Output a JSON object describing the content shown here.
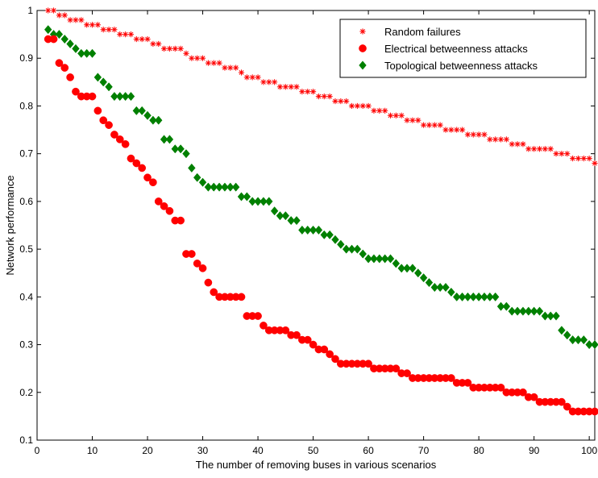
{
  "chart_data": {
    "type": "scatter",
    "title": "",
    "xlabel": "The number of removing buses in various scenarios",
    "ylabel": "Network performance",
    "xlim": [
      0,
      101
    ],
    "ylim": [
      0.1,
      1
    ],
    "xticks": [
      0,
      10,
      20,
      30,
      40,
      50,
      60,
      70,
      80,
      90,
      100
    ],
    "yticks": [
      0.1,
      0.2,
      0.3,
      0.4,
      0.5,
      0.6,
      0.7,
      0.8,
      0.9,
      1
    ],
    "xtick_labels": [
      "0",
      "10",
      "20",
      "30",
      "40",
      "50",
      "60",
      "70",
      "80",
      "90",
      "100"
    ],
    "ytick_labels": [
      "0.1",
      "0.2",
      "0.3",
      "0.4",
      "0.5",
      "0.6",
      "0.7",
      "0.8",
      "0.9",
      "1"
    ],
    "grid": false,
    "legend_position": "top-right",
    "x": [
      2,
      3,
      4,
      5,
      6,
      7,
      8,
      9,
      10,
      11,
      12,
      13,
      14,
      15,
      16,
      17,
      18,
      19,
      20,
      21,
      22,
      23,
      24,
      25,
      26,
      27,
      28,
      29,
      30,
      31,
      32,
      33,
      34,
      35,
      36,
      37,
      38,
      39,
      40,
      41,
      42,
      43,
      44,
      45,
      46,
      47,
      48,
      49,
      50,
      51,
      52,
      53,
      54,
      55,
      56,
      57,
      58,
      59,
      60,
      61,
      62,
      63,
      64,
      65,
      66,
      67,
      68,
      69,
      70,
      71,
      72,
      73,
      74,
      75,
      76,
      77,
      78,
      79,
      80,
      81,
      82,
      83,
      84,
      85,
      86,
      87,
      88,
      89,
      90,
      91,
      92,
      93,
      94,
      95,
      96,
      97,
      98,
      99,
      100,
      101
    ],
    "series": [
      {
        "name": "Random failures",
        "marker": "star",
        "color": "#ff0000",
        "values": [
          1.0,
          1.0,
          0.99,
          0.99,
          0.98,
          0.98,
          0.98,
          0.97,
          0.97,
          0.97,
          0.96,
          0.96,
          0.96,
          0.95,
          0.95,
          0.95,
          0.94,
          0.94,
          0.94,
          0.93,
          0.93,
          0.92,
          0.92,
          0.92,
          0.92,
          0.91,
          0.9,
          0.9,
          0.9,
          0.89,
          0.89,
          0.89,
          0.88,
          0.88,
          0.88,
          0.87,
          0.86,
          0.86,
          0.86,
          0.85,
          0.85,
          0.85,
          0.84,
          0.84,
          0.84,
          0.84,
          0.83,
          0.83,
          0.83,
          0.82,
          0.82,
          0.82,
          0.81,
          0.81,
          0.81,
          0.8,
          0.8,
          0.8,
          0.8,
          0.79,
          0.79,
          0.79,
          0.78,
          0.78,
          0.78,
          0.77,
          0.77,
          0.77,
          0.76,
          0.76,
          0.76,
          0.76,
          0.75,
          0.75,
          0.75,
          0.75,
          0.74,
          0.74,
          0.74,
          0.74,
          0.73,
          0.73,
          0.73,
          0.73,
          0.72,
          0.72,
          0.72,
          0.71,
          0.71,
          0.71,
          0.71,
          0.71,
          0.7,
          0.7,
          0.7,
          0.69,
          0.69,
          0.69,
          0.69,
          0.68
        ]
      },
      {
        "name": "Electrical betweenness attacks",
        "marker": "circle",
        "color": "#ff0000",
        "values": [
          0.94,
          0.94,
          0.89,
          0.88,
          0.86,
          0.83,
          0.82,
          0.82,
          0.82,
          0.79,
          0.77,
          0.76,
          0.74,
          0.73,
          0.72,
          0.69,
          0.68,
          0.67,
          0.65,
          0.64,
          0.6,
          0.59,
          0.58,
          0.56,
          0.56,
          0.49,
          0.49,
          0.47,
          0.46,
          0.43,
          0.41,
          0.4,
          0.4,
          0.4,
          0.4,
          0.4,
          0.36,
          0.36,
          0.36,
          0.34,
          0.33,
          0.33,
          0.33,
          0.33,
          0.32,
          0.32,
          0.31,
          0.31,
          0.3,
          0.29,
          0.29,
          0.28,
          0.27,
          0.26,
          0.26,
          0.26,
          0.26,
          0.26,
          0.26,
          0.25,
          0.25,
          0.25,
          0.25,
          0.25,
          0.24,
          0.24,
          0.23,
          0.23,
          0.23,
          0.23,
          0.23,
          0.23,
          0.23,
          0.23,
          0.22,
          0.22,
          0.22,
          0.21,
          0.21,
          0.21,
          0.21,
          0.21,
          0.21,
          0.2,
          0.2,
          0.2,
          0.2,
          0.19,
          0.19,
          0.18,
          0.18,
          0.18,
          0.18,
          0.18,
          0.17,
          0.16,
          0.16,
          0.16,
          0.16,
          0.16
        ]
      },
      {
        "name": "Topological betweenness attacks",
        "marker": "diamond",
        "color": "#008000",
        "values": [
          0.96,
          0.95,
          0.95,
          0.94,
          0.93,
          0.92,
          0.91,
          0.91,
          0.91,
          0.86,
          0.85,
          0.84,
          0.82,
          0.82,
          0.82,
          0.82,
          0.79,
          0.79,
          0.78,
          0.77,
          0.77,
          0.73,
          0.73,
          0.71,
          0.71,
          0.7,
          0.67,
          0.65,
          0.64,
          0.63,
          0.63,
          0.63,
          0.63,
          0.63,
          0.63,
          0.61,
          0.61,
          0.6,
          0.6,
          0.6,
          0.6,
          0.58,
          0.57,
          0.57,
          0.56,
          0.56,
          0.54,
          0.54,
          0.54,
          0.54,
          0.53,
          0.53,
          0.52,
          0.51,
          0.5,
          0.5,
          0.5,
          0.49,
          0.48,
          0.48,
          0.48,
          0.48,
          0.48,
          0.47,
          0.46,
          0.46,
          0.46,
          0.45,
          0.44,
          0.43,
          0.42,
          0.42,
          0.42,
          0.41,
          0.4,
          0.4,
          0.4,
          0.4,
          0.4,
          0.4,
          0.4,
          0.4,
          0.38,
          0.38,
          0.37,
          0.37,
          0.37,
          0.37,
          0.37,
          0.37,
          0.36,
          0.36,
          0.36,
          0.33,
          0.32,
          0.31,
          0.31,
          0.31,
          0.3,
          0.3
        ]
      }
    ]
  }
}
